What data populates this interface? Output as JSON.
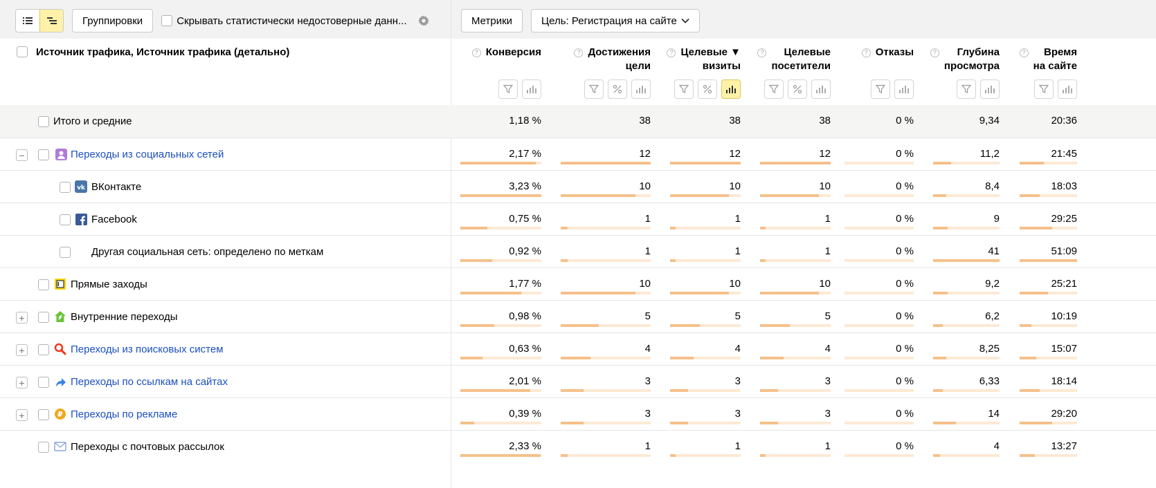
{
  "toolbar": {
    "group_label": "Группировки",
    "hide_label": "Скрывать статистически недостоверные данн...",
    "metrics_label": "Метрики",
    "goal_label": "Цель: Регистрация на сайте"
  },
  "header": {
    "dimension_title": "Источник трафика, Источник трафика (детально)"
  },
  "columns": [
    {
      "line1": "Конверсия",
      "line2": ""
    },
    {
      "line1": "Достижения",
      "line2": "цели"
    },
    {
      "line1": "Целевые ▼",
      "line2": "визиты"
    },
    {
      "line1": "Целевые",
      "line2": "посетители"
    },
    {
      "line1": "Отказы",
      "line2": ""
    },
    {
      "line1": "Глубина",
      "line2": "просмотра"
    },
    {
      "line1": "Время",
      "line2": "на сайте"
    }
  ],
  "total": {
    "label": "Итого и средние",
    "values": [
      "1,18 %",
      "38",
      "38",
      "38",
      "0 %",
      "9,34",
      "20:36"
    ]
  },
  "rows": [
    {
      "label": "Переходы из социальных сетей",
      "values": [
        "2,17 %",
        "12",
        "12",
        "12",
        "0 %",
        "11,2",
        "21:45"
      ],
      "bars": [
        0.93,
        1.0,
        1.0,
        1.0,
        0,
        0.27,
        0.42
      ]
    },
    {
      "label": "ВКонтакте",
      "values": [
        "3,23 %",
        "10",
        "10",
        "10",
        "0 %",
        "8,4",
        "18:03"
      ],
      "bars": [
        1.0,
        0.83,
        0.83,
        0.83,
        0,
        0.2,
        0.35
      ]
    },
    {
      "label": "Facebook",
      "values": [
        "0,75 %",
        "1",
        "1",
        "1",
        "0 %",
        "9",
        "29:25"
      ],
      "bars": [
        0.33,
        0.08,
        0.08,
        0.08,
        0,
        0.22,
        0.57
      ]
    },
    {
      "label": "Другая социальная сеть: определено по меткам",
      "values": [
        "0,92 %",
        "1",
        "1",
        "1",
        "0 %",
        "41",
        "51:09"
      ],
      "bars": [
        0.39,
        0.08,
        0.08,
        0.08,
        0,
        1.0,
        1.0
      ]
    },
    {
      "label": "Прямые заходы",
      "values": [
        "1,77 %",
        "10",
        "10",
        "10",
        "0 %",
        "9,2",
        "25:21"
      ],
      "bars": [
        0.75,
        0.83,
        0.83,
        0.83,
        0,
        0.22,
        0.49
      ]
    },
    {
      "label": "Внутренние переходы",
      "values": [
        "0,98 %",
        "5",
        "5",
        "5",
        "0 %",
        "6,2",
        "10:19"
      ],
      "bars": [
        0.42,
        0.42,
        0.42,
        0.42,
        0,
        0.15,
        0.2
      ]
    },
    {
      "label": "Переходы из поисковых систем",
      "values": [
        "0,63 %",
        "4",
        "4",
        "4",
        "0 %",
        "8,25",
        "15:07"
      ],
      "bars": [
        0.27,
        0.33,
        0.33,
        0.33,
        0,
        0.2,
        0.29
      ]
    },
    {
      "label": "Переходы по ссылкам на сайтах",
      "values": [
        "2,01 %",
        "3",
        "3",
        "3",
        "0 %",
        "6,33",
        "18:14"
      ],
      "bars": [
        0.86,
        0.25,
        0.25,
        0.25,
        0,
        0.15,
        0.35
      ]
    },
    {
      "label": "Переходы по рекламе",
      "values": [
        "0,39 %",
        "3",
        "3",
        "3",
        "0 %",
        "14",
        "29:20"
      ],
      "bars": [
        0.17,
        0.25,
        0.25,
        0.25,
        0,
        0.34,
        0.57
      ]
    },
    {
      "label": "Переходы с почтовых рассылок",
      "values": [
        "2,33 %",
        "1",
        "1",
        "1",
        "0 %",
        "4",
        "13:27"
      ],
      "bars": [
        0.99,
        0.08,
        0.08,
        0.08,
        0,
        0.1,
        0.26
      ]
    }
  ],
  "colors": {
    "accent_yellow": "#fff2a8",
    "bar_track": "#fde9d4",
    "bar_fill": "#f5c08a",
    "link": "#1a4fbf",
    "vk": "#4a76a8",
    "facebook": "#3b5998"
  },
  "icons": {
    "social": "person-icon",
    "vk": "vk-logo-icon",
    "facebook": "facebook-logo-icon",
    "direct": "direct-visit-icon",
    "internal": "house-icon",
    "search": "magnifier-icon",
    "links": "arrow-link-icon",
    "ads": "ruble-coin-icon",
    "mail": "envelope-icon"
  }
}
